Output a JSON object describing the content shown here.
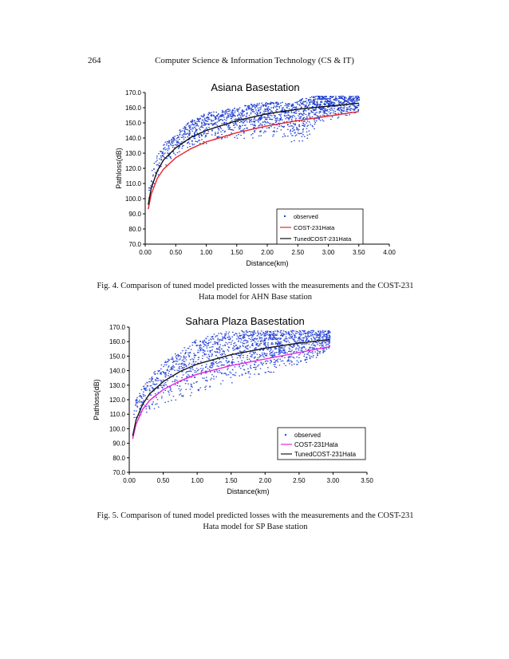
{
  "header": {
    "page_number": "264",
    "running_title": "Computer Science & Information Technology (CS & IT)"
  },
  "captions": {
    "fig4_line1": "Fig. 4. Comparison of tuned model predicted losses with the measurements and the COST-231",
    "fig4_line2": "Hata  model for AHN  Base station",
    "fig5_line1": "Fig. 5. Comparison of tuned model predicted losses with the measurements and the COST-231",
    "fig5_line2": "Hata  model for SP Base station"
  },
  "chart_data": [
    {
      "type": "scatter",
      "title": "Asiana Basestation",
      "xlabel": "Distance(km)",
      "ylabel": "Pathloss(dB)",
      "xlim": [
        0.0,
        4.0
      ],
      "ylim": [
        70.0,
        170.0
      ],
      "x_ticks": [
        "0.00",
        "0.50",
        "1.00",
        "1.50",
        "2.00",
        "2.50",
        "3.00",
        "3.50",
        "4.00"
      ],
      "y_ticks": [
        "70.0",
        "80.0",
        "90.0",
        "100.0",
        "110.0",
        "120.0",
        "130.0",
        "140.0",
        "150.0",
        "160.0",
        "170.0"
      ],
      "grid": false,
      "legend_position": "bottom-right",
      "observed_color": "#1f3fd0",
      "series": [
        {
          "name": "observed",
          "style": "points",
          "color": "#1f3fd0",
          "x": [
            0.05,
            0.1,
            0.15,
            0.2,
            0.3,
            0.4,
            0.5,
            0.6,
            0.7,
            0.8,
            0.9,
            1.0,
            1.2,
            1.4,
            1.6,
            1.8,
            2.0,
            2.2,
            2.4,
            2.6,
            2.8,
            3.0,
            3.2,
            3.4,
            3.5
          ],
          "y_low": [
            97,
            104,
            110,
            114,
            120,
            124,
            128,
            131,
            133,
            133,
            135,
            136,
            138,
            139,
            140,
            140,
            140,
            140,
            136,
            137,
            148,
            152,
            154,
            156,
            157
          ],
          "y_high": [
            112,
            120,
            126,
            130,
            137,
            140,
            142,
            148,
            151,
            153,
            155,
            157,
            158,
            160,
            162,
            163,
            164,
            164,
            163,
            167,
            168,
            168,
            168,
            168,
            168
          ]
        },
        {
          "name": "COST-231Hata",
          "style": "line",
          "color": "#e8252a",
          "x": [
            0.05,
            0.1,
            0.2,
            0.3,
            0.5,
            0.75,
            1.0,
            1.5,
            2.0,
            2.5,
            3.0,
            3.5
          ],
          "y": [
            93.0,
            103.0,
            113.5,
            119.5,
            127.0,
            133.0,
            137.5,
            143.5,
            148.0,
            151.5,
            154.5,
            157.5
          ]
        },
        {
          "name": "TunedCOST-231Hata",
          "style": "line",
          "color": "#111111",
          "x": [
            0.05,
            0.1,
            0.2,
            0.3,
            0.5,
            0.75,
            1.0,
            1.5,
            2.0,
            2.5,
            3.0,
            3.5
          ],
          "y": [
            96.0,
            107.0,
            118.5,
            125.5,
            133.5,
            140.5,
            145.0,
            151.5,
            156.0,
            159.0,
            161.0,
            163.0
          ]
        }
      ]
    },
    {
      "type": "scatter",
      "title": "Sahara Plaza Basestation",
      "xlabel": "Distance(km)",
      "ylabel": "Pathloss(dB)",
      "xlim": [
        0.0,
        3.5
      ],
      "ylim": [
        70.0,
        170.0
      ],
      "x_ticks": [
        "0.00",
        "0.50",
        "1.00",
        "1.50",
        "2.00",
        "2.50",
        "3.00",
        "3.50"
      ],
      "y_ticks": [
        "70.0",
        "80.0",
        "90.0",
        "100.0",
        "110.0",
        "120.0",
        "130.0",
        "140.0",
        "150.0",
        "160.0",
        "170.0"
      ],
      "grid": false,
      "legend_position": "bottom-right",
      "observed_color": "#2a46d8",
      "series": [
        {
          "name": "observed",
          "style": "points",
          "color": "#2a46d8",
          "x": [
            0.05,
            0.1,
            0.2,
            0.3,
            0.4,
            0.5,
            0.6,
            0.7,
            0.8,
            0.9,
            1.0,
            1.2,
            1.4,
            1.6,
            1.8,
            2.0,
            2.2,
            2.4,
            2.6,
            2.8,
            2.95
          ],
          "y_low": [
            96,
            104,
            110,
            112,
            114,
            115,
            118,
            118,
            120,
            122,
            125,
            128,
            130,
            133,
            135,
            137,
            140,
            143,
            145,
            150,
            155
          ],
          "y_high": [
            112,
            122,
            130,
            136,
            142,
            146,
            150,
            153,
            156,
            160,
            162,
            165,
            167,
            168,
            168,
            168,
            168,
            168,
            168,
            168,
            168
          ]
        },
        {
          "name": "COST-231Hata",
          "style": "line",
          "color": "#e824d8",
          "x": [
            0.05,
            0.1,
            0.2,
            0.3,
            0.5,
            0.75,
            1.0,
            1.5,
            2.0,
            2.5,
            2.95
          ],
          "y": [
            93.0,
            103.0,
            113.5,
            119.5,
            127.0,
            133.0,
            137.5,
            143.5,
            148.0,
            152.5,
            156.5
          ]
        },
        {
          "name": "TunedCOST-231Hata",
          "style": "line",
          "color": "#1a1a1a",
          "x": [
            0.05,
            0.1,
            0.2,
            0.3,
            0.5,
            0.75,
            1.0,
            1.5,
            2.0,
            2.5,
            2.95
          ],
          "y": [
            95.0,
            106.0,
            117.0,
            124.0,
            132.5,
            139.5,
            144.5,
            151.0,
            155.5,
            159.0,
            161.5
          ]
        }
      ]
    }
  ]
}
